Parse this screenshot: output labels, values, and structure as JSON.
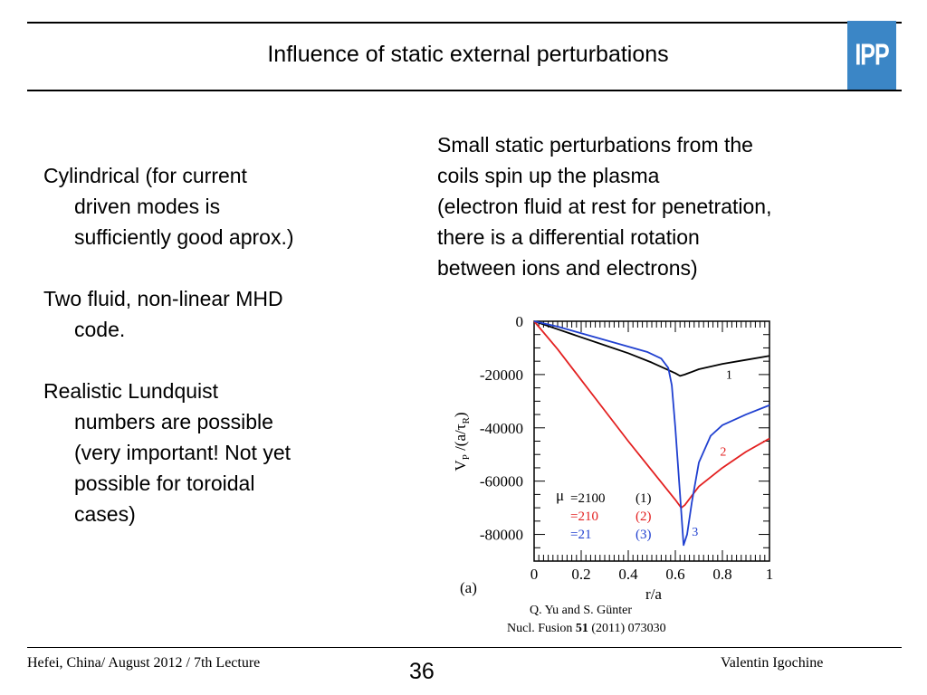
{
  "header": {
    "title": "Influence of static external perturbations",
    "logo_text": "IPP"
  },
  "left": {
    "paragraphs": [
      {
        "first": "Cylindrical (for current",
        "rest": [
          "driven modes is",
          "sufficiently good aprox.)"
        ]
      },
      {
        "first": "Two fluid, non-linear MHD",
        "rest": [
          "code."
        ]
      },
      {
        "first": "Realistic Lundquist",
        "rest": [
          "numbers are possible",
          "(very important! Not yet",
          "possible for toroidal",
          "cases)"
        ]
      }
    ]
  },
  "right": {
    "lines": [
      "Small static perturbations from the",
      "coils spin up the plasma",
      "(electron fluid at rest for penetration,",
      "there is a differential rotation",
      "between ions and electrons)"
    ]
  },
  "chart_data": {
    "type": "line",
    "xlabel": "r/a",
    "ylabel_main": "V",
    "ylabel_sub": "P",
    "ylabel_rest": " /(a/",
    "ylabel_tau": "τ",
    "ylabel_tau_sub": "R",
    "ylabel_end": ")",
    "xlim": [
      0,
      1
    ],
    "ylim": [
      -90000,
      0
    ],
    "x_ticks": [
      "0",
      "0.2",
      "0.4",
      "0.6",
      "0.8",
      "1"
    ],
    "x_tick_values": [
      0,
      0.2,
      0.4,
      0.6,
      0.8,
      1
    ],
    "y_ticks": [
      "0",
      "-20000",
      "-40000",
      "-60000",
      "-80000"
    ],
    "y_tick_values": [
      0,
      -20000,
      -40000,
      -60000,
      -80000
    ],
    "panel_label": "(a)",
    "legend": {
      "mu_symbol": "μ",
      "rows": [
        {
          "value": "=2100",
          "id": "(1)",
          "color": "#000000"
        },
        {
          "value": "=210",
          "id": "(2)",
          "color": "#e32020"
        },
        {
          "value": "=21",
          "id": "(3)",
          "color": "#2040d0"
        }
      ]
    },
    "series": [
      {
        "label": "1",
        "color": "#000000",
        "x": [
          0,
          0.1,
          0.2,
          0.3,
          0.4,
          0.5,
          0.55,
          0.6,
          0.62,
          0.64,
          0.7,
          0.8,
          0.9,
          1.0
        ],
        "y": [
          0,
          -3000,
          -6000,
          -9000,
          -12000,
          -15500,
          -17500,
          -19500,
          -20500,
          -20000,
          -18000,
          -16000,
          -14500,
          -13000
        ]
      },
      {
        "label": "2",
        "color": "#e32020",
        "x": [
          0,
          0.1,
          0.2,
          0.3,
          0.4,
          0.5,
          0.6,
          0.625,
          0.64,
          0.7,
          0.8,
          0.9,
          1.0
        ],
        "y": [
          0,
          -10500,
          -22000,
          -33500,
          -45000,
          -56000,
          -67000,
          -70000,
          -69000,
          -62000,
          -55000,
          -49000,
          -44000
        ]
      },
      {
        "label": "3",
        "color": "#2040d0",
        "x": [
          0,
          0.1,
          0.2,
          0.3,
          0.4,
          0.48,
          0.54,
          0.57,
          0.585,
          0.6,
          0.62,
          0.635,
          0.65,
          0.67,
          0.7,
          0.75,
          0.8,
          0.9,
          1.0
        ],
        "y": [
          0,
          -2000,
          -4500,
          -7000,
          -9500,
          -11500,
          -14000,
          -17500,
          -24000,
          -40000,
          -65000,
          -84000,
          -80000,
          -68000,
          -53000,
          -43000,
          -39000,
          -35000,
          -31500
        ]
      }
    ]
  },
  "credit": {
    "line1": "Q. Yu and S. Günter",
    "line2_prefix": "Nucl. Fusion ",
    "line2_vol": "51",
    "line2_rest": " (2011) 073030"
  },
  "footer": {
    "left": "Hefei, China/ August 2012 / 7th Lecture",
    "page": "36",
    "right": "Valentin Igochine"
  }
}
